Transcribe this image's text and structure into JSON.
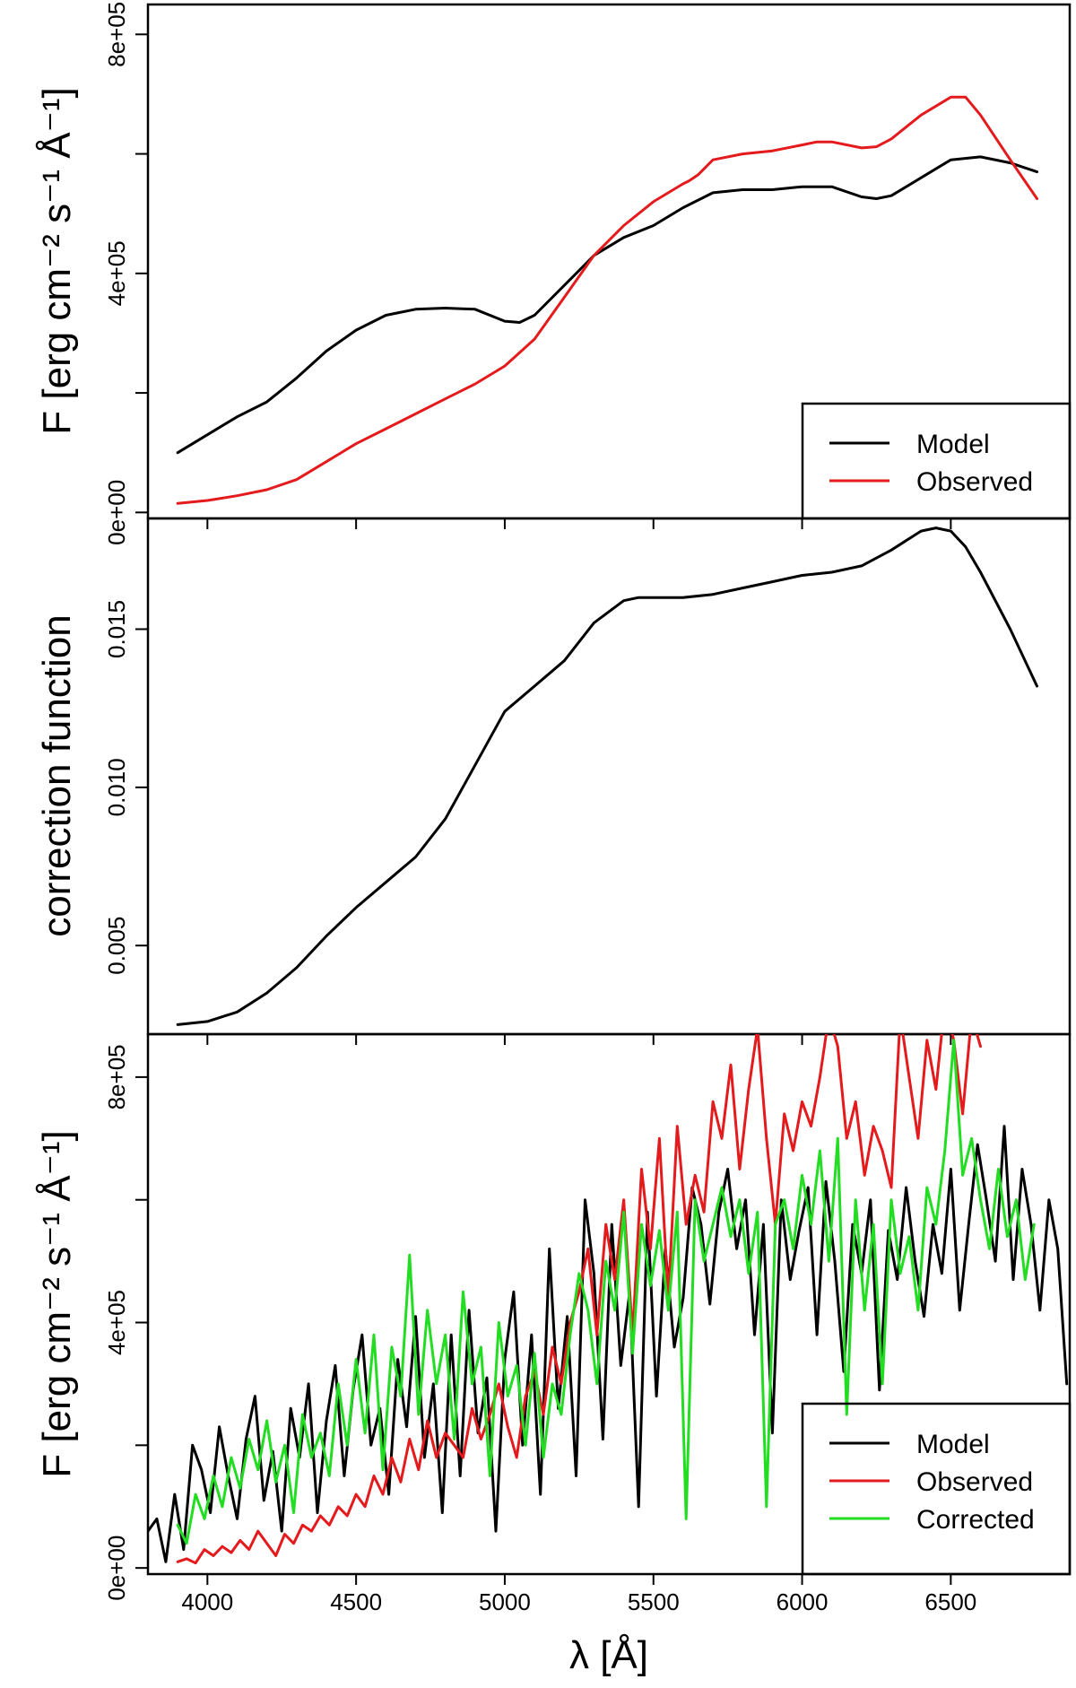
{
  "colors": {
    "model": "#000000",
    "observed": "#e41a1c",
    "corrected": "#22dd22"
  },
  "chart_data": [
    {
      "type": "line",
      "title": "",
      "ylabel": "F [erg cm⁻² s⁻¹ Å⁻¹]",
      "xlim": [
        3800,
        6900
      ],
      "ylim": [
        -10000,
        850000
      ],
      "yticks": [
        0,
        200000,
        400000,
        600000,
        800000
      ],
      "ytick_labels": [
        "0e+00",
        "",
        "4e+05",
        "",
        "8e+05"
      ],
      "legend": {
        "position": "bottom-right",
        "entries": [
          "Model",
          "Observed"
        ]
      },
      "series": [
        {
          "name": "Model",
          "color": "#000000",
          "x": [
            3900,
            4000,
            4100,
            4200,
            4300,
            4400,
            4500,
            4600,
            4700,
            4800,
            4900,
            5000,
            5050,
            5100,
            5200,
            5300,
            5400,
            5500,
            5600,
            5700,
            5800,
            5900,
            6000,
            6100,
            6200,
            6250,
            6300,
            6400,
            6500,
            6600,
            6700,
            6790
          ],
          "y": [
            100000,
            130000,
            160000,
            185000,
            225000,
            270000,
            305000,
            330000,
            340000,
            342000,
            340000,
            320000,
            318000,
            330000,
            380000,
            430000,
            460000,
            480000,
            510000,
            535000,
            540000,
            540000,
            545000,
            545000,
            528000,
            525000,
            530000,
            560000,
            590000,
            595000,
            585000,
            570000
          ]
        },
        {
          "name": "Observed",
          "color": "#e41a1c",
          "x": [
            3900,
            4000,
            4100,
            4200,
            4300,
            4400,
            4500,
            4600,
            4700,
            4800,
            4900,
            5000,
            5100,
            5200,
            5300,
            5400,
            5500,
            5600,
            5620,
            5650,
            5700,
            5800,
            5900,
            6000,
            6050,
            6100,
            6200,
            6250,
            6300,
            6400,
            6500,
            6550,
            6600,
            6700,
            6790
          ],
          "y": [
            15000,
            20000,
            28000,
            38000,
            55000,
            85000,
            115000,
            140000,
            165000,
            190000,
            215000,
            245000,
            290000,
            360000,
            430000,
            480000,
            520000,
            550000,
            555000,
            565000,
            590000,
            600000,
            605000,
            615000,
            620000,
            620000,
            610000,
            612000,
            625000,
            665000,
            695000,
            695000,
            665000,
            590000,
            525000
          ]
        }
      ]
    },
    {
      "type": "line",
      "title": "",
      "ylabel": "correction function",
      "xlim": [
        3800,
        6900
      ],
      "ylim": [
        0.0022,
        0.0185
      ],
      "yticks": [
        0.005,
        0.01,
        0.015
      ],
      "ytick_labels": [
        "0.005",
        "0.010",
        "0.015"
      ],
      "series": [
        {
          "name": "",
          "color": "#000000",
          "x": [
            3900,
            4000,
            4100,
            4200,
            4300,
            4400,
            4500,
            4600,
            4700,
            4800,
            4900,
            5000,
            5100,
            5200,
            5300,
            5400,
            5450,
            5500,
            5600,
            5700,
            5800,
            5900,
            6000,
            6100,
            6200,
            6300,
            6350,
            6400,
            6450,
            6500,
            6550,
            6600,
            6700,
            6790
          ],
          "y": [
            0.0025,
            0.0026,
            0.0029,
            0.0035,
            0.0043,
            0.0053,
            0.0062,
            0.007,
            0.0078,
            0.009,
            0.0107,
            0.0124,
            0.0132,
            0.014,
            0.0152,
            0.0159,
            0.016,
            0.016,
            0.016,
            0.0161,
            0.0163,
            0.0165,
            0.0167,
            0.0168,
            0.017,
            0.0175,
            0.0178,
            0.0181,
            0.0182,
            0.0181,
            0.0176,
            0.0168,
            0.015,
            0.0132
          ]
        }
      ]
    },
    {
      "type": "line",
      "title": "",
      "xlabel": "λ [Å]",
      "ylabel": "F [erg cm⁻² s⁻¹ Å⁻¹]",
      "xlim": [
        3800,
        6900
      ],
      "ylim": [
        -10000,
        870000
      ],
      "yticks": [
        0,
        200000,
        400000,
        600000,
        800000
      ],
      "ytick_labels": [
        "0e+00",
        "",
        "4e+05",
        "",
        "8e+05"
      ],
      "xticks": [
        4000,
        4500,
        5000,
        5500,
        6000,
        6500
      ],
      "xtick_labels": [
        "4000",
        "4500",
        "5000",
        "5500",
        "6000",
        "6500"
      ],
      "legend": {
        "position": "bottom-right",
        "entries": [
          "Model",
          "Observed",
          "Corrected"
        ]
      },
      "series": [
        {
          "name": "Model",
          "color": "#000000",
          "x": [
            3800,
            3830,
            3860,
            3890,
            3920,
            3950,
            3980,
            4010,
            4040,
            4070,
            4100,
            4130,
            4160,
            4190,
            4220,
            4250,
            4280,
            4310,
            4340,
            4370,
            4400,
            4430,
            4460,
            4490,
            4520,
            4550,
            4580,
            4610,
            4640,
            4670,
            4700,
            4730,
            4760,
            4790,
            4820,
            4850,
            4880,
            4910,
            4940,
            4970,
            5000,
            5030,
            5060,
            5090,
            5120,
            5150,
            5180,
            5210,
            5240,
            5270,
            5300,
            5330,
            5360,
            5390,
            5420,
            5450,
            5480,
            5510,
            5540,
            5570,
            5600,
            5630,
            5660,
            5690,
            5720,
            5750,
            5780,
            5810,
            5840,
            5870,
            5900,
            5930,
            5960,
            5990,
            6020,
            6050,
            6080,
            6110,
            6140,
            6170,
            6200,
            6230,
            6260,
            6290,
            6320,
            6350,
            6380,
            6410,
            6440,
            6470,
            6500,
            6530,
            6560,
            6590,
            6620,
            6650,
            6680,
            6710,
            6740,
            6770,
            6800,
            6830,
            6860,
            6890
          ],
          "y": [
            60000,
            80000,
            10000,
            120000,
            30000,
            200000,
            160000,
            90000,
            230000,
            150000,
            80000,
            210000,
            280000,
            110000,
            190000,
            60000,
            260000,
            180000,
            300000,
            90000,
            240000,
            330000,
            150000,
            290000,
            380000,
            200000,
            260000,
            120000,
            340000,
            230000,
            410000,
            180000,
            300000,
            90000,
            380000,
            150000,
            420000,
            220000,
            310000,
            60000,
            340000,
            450000,
            200000,
            380000,
            120000,
            520000,
            260000,
            410000,
            150000,
            600000,
            480000,
            210000,
            560000,
            330000,
            450000,
            100000,
            580000,
            280000,
            520000,
            360000,
            440000,
            620000,
            560000,
            430000,
            580000,
            650000,
            520000,
            600000,
            380000,
            560000,
            220000,
            600000,
            470000,
            550000,
            620000,
            380000,
            630000,
            500000,
            320000,
            560000,
            480000,
            600000,
            290000,
            550000,
            470000,
            620000,
            500000,
            410000,
            560000,
            480000,
            650000,
            420000,
            560000,
            690000,
            600000,
            500000,
            720000,
            470000,
            650000,
            560000,
            420000,
            600000,
            520000,
            300000
          ]
        },
        {
          "name": "Observed",
          "color": "#e41a1c",
          "x": [
            3900,
            3930,
            3960,
            3990,
            4020,
            4050,
            4080,
            4110,
            4140,
            4170,
            4200,
            4230,
            4260,
            4290,
            4320,
            4350,
            4380,
            4410,
            4440,
            4470,
            4500,
            4530,
            4560,
            4590,
            4620,
            4650,
            4680,
            4710,
            4740,
            4770,
            4800,
            4830,
            4860,
            4890,
            4920,
            4950,
            4980,
            5010,
            5040,
            5070,
            5100,
            5130,
            5160,
            5190,
            5220,
            5250,
            5280,
            5310,
            5340,
            5370,
            5400,
            5430,
            5460,
            5490,
            5520,
            5550,
            5580,
            5610,
            5640,
            5670,
            5700,
            5730,
            5760,
            5790,
            5820,
            5850,
            5880,
            5910,
            5940,
            5970,
            6000,
            6030,
            6060,
            6090,
            6120,
            6150,
            6180,
            6210,
            6240,
            6270,
            6300,
            6330,
            6360,
            6390,
            6420,
            6450,
            6480,
            6510,
            6540,
            6570,
            6600
          ],
          "y": [
            10000,
            15000,
            8000,
            30000,
            20000,
            35000,
            25000,
            45000,
            30000,
            60000,
            40000,
            20000,
            55000,
            40000,
            70000,
            60000,
            85000,
            70000,
            100000,
            85000,
            120000,
            100000,
            150000,
            120000,
            180000,
            140000,
            210000,
            160000,
            240000,
            180000,
            220000,
            200000,
            180000,
            260000,
            210000,
            250000,
            300000,
            230000,
            180000,
            280000,
            320000,
            250000,
            360000,
            300000,
            400000,
            450000,
            520000,
            380000,
            560000,
            470000,
            600000,
            380000,
            650000,
            520000,
            700000,
            440000,
            720000,
            560000,
            640000,
            580000,
            760000,
            700000,
            820000,
            650000,
            780000,
            880000,
            700000,
            560000,
            740000,
            680000,
            760000,
            720000,
            800000,
            900000,
            850000,
            700000,
            760000,
            640000,
            720000,
            680000,
            620000,
            900000,
            800000,
            700000,
            860000,
            780000,
            920000,
            860000,
            740000,
            900000,
            850000
          ]
        },
        {
          "name": "Corrected",
          "color": "#22dd22",
          "x": [
            3900,
            3930,
            3960,
            3990,
            4020,
            4050,
            4080,
            4110,
            4140,
            4170,
            4200,
            4230,
            4260,
            4290,
            4320,
            4350,
            4380,
            4410,
            4440,
            4470,
            4500,
            4530,
            4560,
            4590,
            4620,
            4650,
            4680,
            4710,
            4740,
            4770,
            4800,
            4830,
            4860,
            4890,
            4920,
            4950,
            4980,
            5010,
            5040,
            5070,
            5100,
            5130,
            5160,
            5190,
            5220,
            5250,
            5280,
            5310,
            5340,
            5370,
            5400,
            5430,
            5460,
            5490,
            5520,
            5550,
            5580,
            5610,
            5640,
            5670,
            5700,
            5730,
            5760,
            5790,
            5820,
            5850,
            5880,
            5910,
            5940,
            5970,
            6000,
            6030,
            6060,
            6090,
            6120,
            6150,
            6180,
            6210,
            6240,
            6270,
            6300,
            6330,
            6360,
            6390,
            6420,
            6450,
            6480,
            6510,
            6540,
            6570,
            6600,
            6630,
            6660,
            6690,
            6720,
            6750,
            6780
          ],
          "y": [
            70000,
            40000,
            120000,
            80000,
            150000,
            100000,
            180000,
            130000,
            210000,
            160000,
            240000,
            140000,
            200000,
            90000,
            250000,
            180000,
            220000,
            150000,
            300000,
            200000,
            340000,
            220000,
            380000,
            160000,
            360000,
            280000,
            510000,
            250000,
            420000,
            300000,
            380000,
            210000,
            450000,
            300000,
            360000,
            150000,
            400000,
            280000,
            330000,
            200000,
            350000,
            180000,
            300000,
            250000,
            380000,
            480000,
            420000,
            300000,
            500000,
            420000,
            580000,
            350000,
            560000,
            460000,
            550000,
            420000,
            580000,
            80000,
            600000,
            500000,
            560000,
            620000,
            540000,
            600000,
            480000,
            580000,
            100000,
            560000,
            600000,
            520000,
            640000,
            560000,
            680000,
            500000,
            700000,
            250000,
            600000,
            420000,
            560000,
            300000,
            600000,
            480000,
            540000,
            420000,
            620000,
            560000,
            680000,
            860000,
            640000,
            700000,
            600000,
            520000,
            650000,
            540000,
            600000,
            470000,
            560000
          ]
        }
      ]
    }
  ]
}
